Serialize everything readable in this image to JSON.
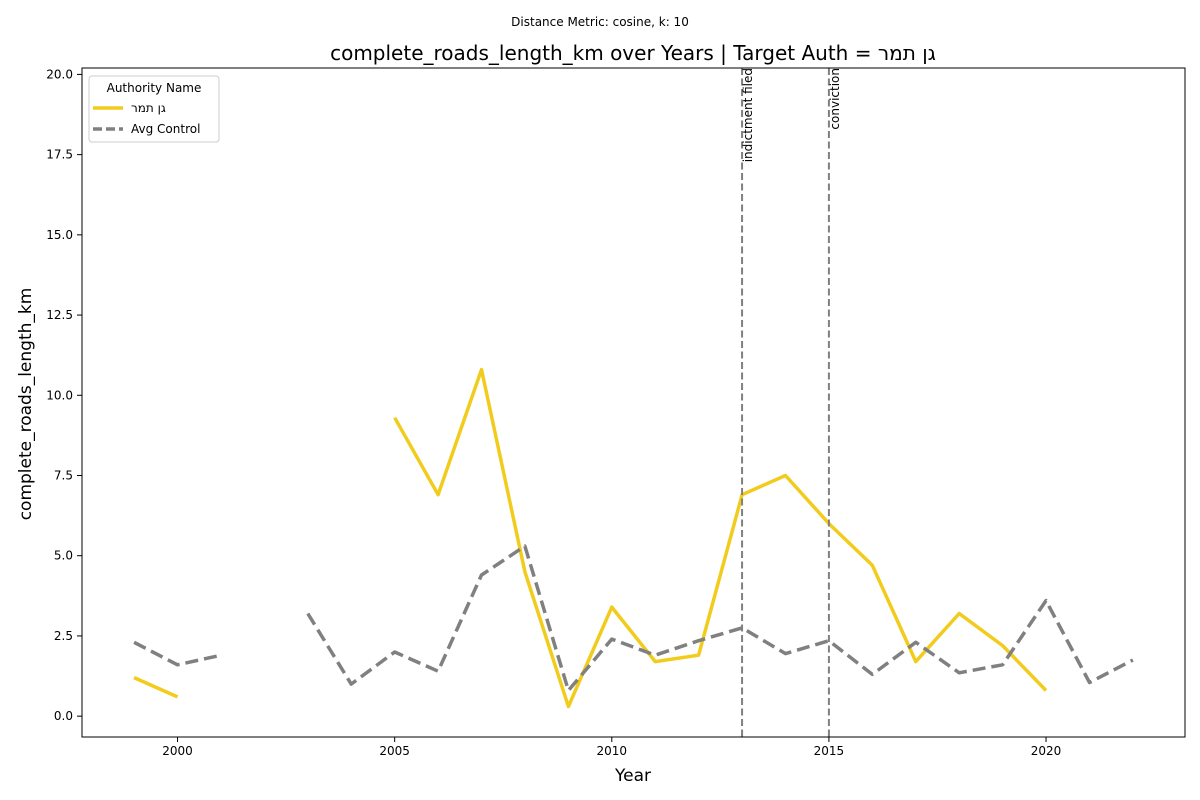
{
  "chart_data": {
    "type": "line",
    "suptitle": "Distance Metric: cosine, k: 10",
    "title": "complete_roads_length_km over Years | Target Auth = גן תמר",
    "xlabel": "Year",
    "ylabel": "complete_roads_length_km",
    "xlim": [
      1997.8,
      2023.2
    ],
    "ylim": [
      -0.65,
      20.2
    ],
    "xticks": [
      2000,
      2005,
      2010,
      2015,
      2020
    ],
    "yticks": [
      0.0,
      2.5,
      5.0,
      7.5,
      10.0,
      12.5,
      15.0,
      17.5,
      20.0
    ],
    "ytick_labels": [
      "0.0",
      "2.5",
      "5.0",
      "7.5",
      "10.0",
      "12.5",
      "15.0",
      "17.5",
      "20.0"
    ],
    "legend": {
      "title": "Authority Name",
      "placement": "top-left"
    },
    "series": [
      {
        "name": "גן תמר",
        "color": "#f2cc1d",
        "style": "solid",
        "x": [
          1999,
          2000,
          2001,
          2002,
          2003,
          2004,
          2005,
          2006,
          2007,
          2008,
          2009,
          2010,
          2011,
          2012,
          2013,
          2014,
          2015,
          2016,
          2017,
          2018,
          2019,
          2020
        ],
        "y": [
          1.2,
          0.6,
          null,
          null,
          null,
          null,
          9.3,
          6.9,
          10.8,
          4.5,
          0.3,
          3.4,
          1.7,
          1.9,
          6.9,
          7.5,
          6.0,
          4.7,
          1.7,
          3.2,
          2.2,
          0.8
        ]
      },
      {
        "name": "Avg Control",
        "color": "#808080",
        "style": "dashed",
        "x": [
          1999,
          2000,
          2001,
          2002,
          2003,
          2004,
          2005,
          2006,
          2007,
          2008,
          2009,
          2010,
          2011,
          2012,
          2013,
          2014,
          2015,
          2016,
          2017,
          2018,
          2019,
          2020,
          2021,
          2022
        ],
        "y": [
          2.3,
          1.6,
          1.9,
          null,
          3.2,
          1.0,
          2.0,
          1.4,
          4.4,
          5.3,
          0.8,
          2.4,
          1.9,
          2.35,
          2.75,
          1.95,
          2.35,
          1.3,
          2.3,
          1.35,
          1.6,
          3.6,
          1.05,
          1.75
        ]
      }
    ],
    "annotations": [
      {
        "x": 2013,
        "label": "indictment filed"
      },
      {
        "x": 2015,
        "label": "conviction"
      }
    ],
    "grid": false
  }
}
